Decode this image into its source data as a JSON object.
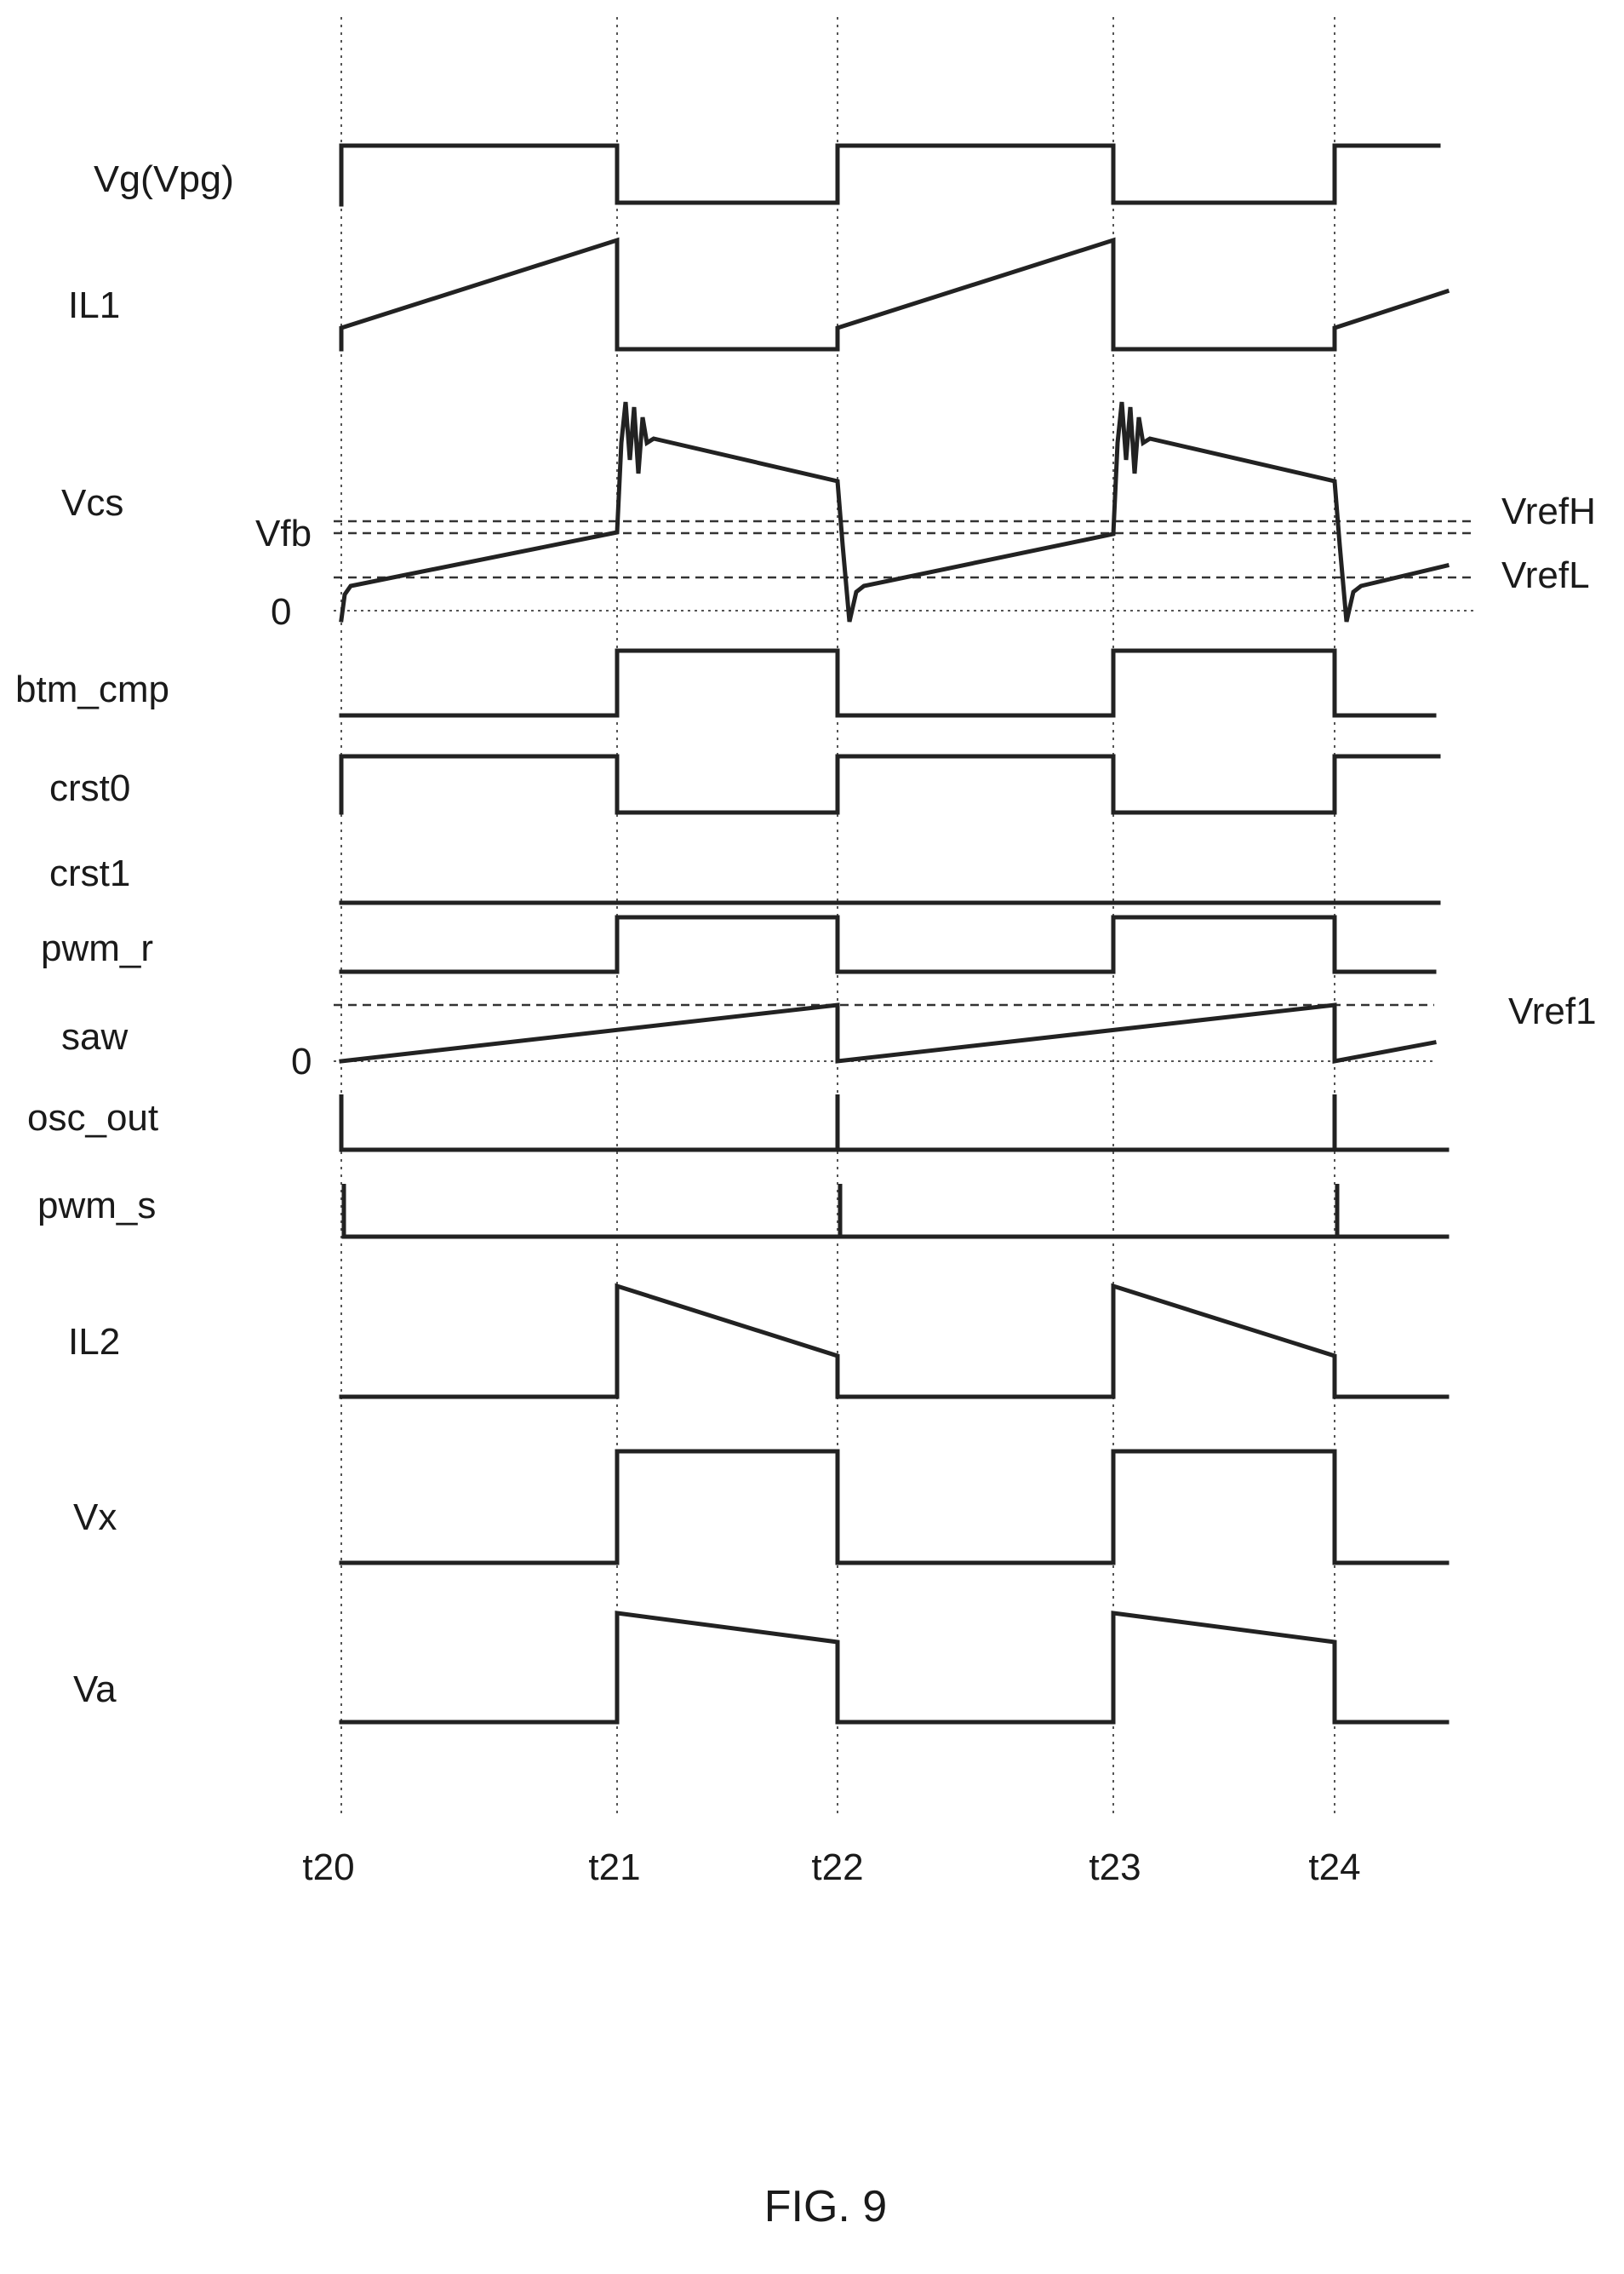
{
  "signals": [
    {
      "id": "vg",
      "label": "Vg(Vpg)"
    },
    {
      "id": "il1",
      "label": "IL1"
    },
    {
      "id": "vcs",
      "label": "Vcs"
    },
    {
      "id": "btm_cmp",
      "label": "btm_cmp"
    },
    {
      "id": "crst0",
      "label": "crst0"
    },
    {
      "id": "crst1",
      "label": "crst1"
    },
    {
      "id": "pwm_r",
      "label": "pwm_r"
    },
    {
      "id": "saw",
      "label": "saw"
    },
    {
      "id": "osc_out",
      "label": "osc_out"
    },
    {
      "id": "pwm_s",
      "label": "pwm_s"
    },
    {
      "id": "il2",
      "label": "IL2"
    },
    {
      "id": "vx",
      "label": "Vx"
    },
    {
      "id": "va",
      "label": "Va"
    }
  ],
  "reference_labels": {
    "vfb": "Vfb",
    "vcs_zero": "0",
    "vref_h": "VrefH",
    "vref_l": "VrefL",
    "vref1": "Vref1",
    "saw_zero": "0"
  },
  "time_markers": [
    "t20",
    "t21",
    "t22",
    "t23",
    "t24"
  ],
  "caption": "FIG. 9"
}
